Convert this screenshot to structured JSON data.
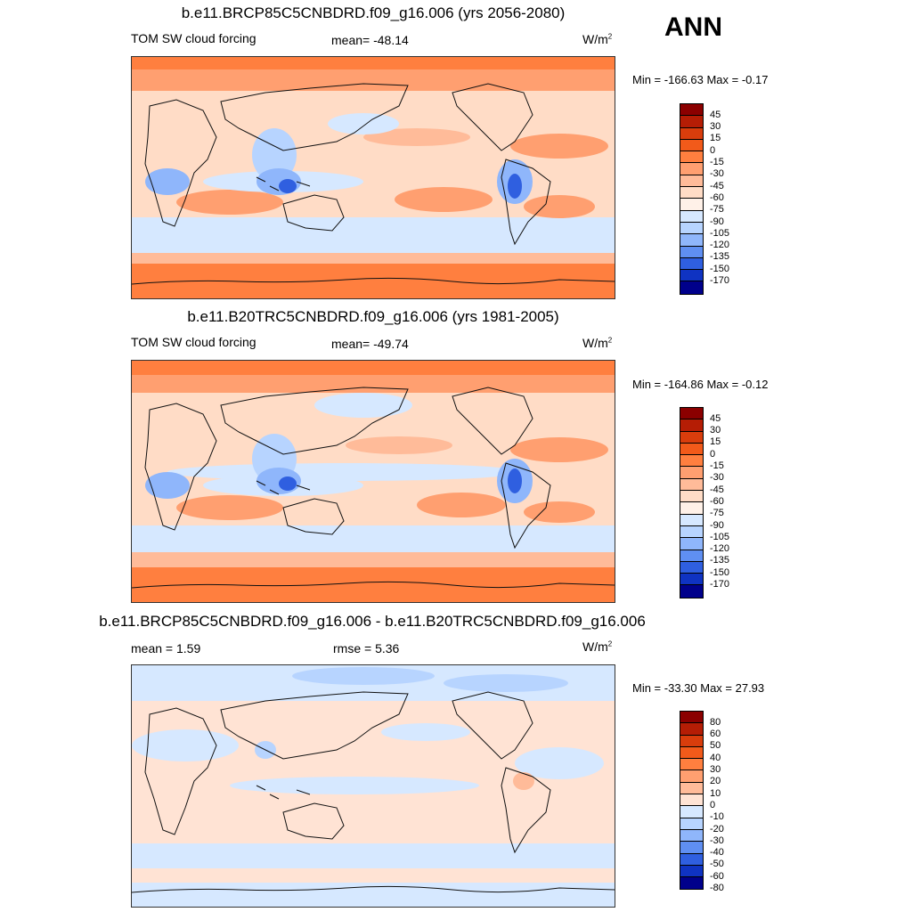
{
  "season": "ANN",
  "units_base": "W/m",
  "units_sup": "2",
  "panels": [
    {
      "title": "b.e11.BRCP85C5CNBDRD.f09_g16.006 (yrs 2056-2080)",
      "left_label": "TOM SW cloud forcing",
      "center_label": "mean= -48.14",
      "minmax": "Min = -166.63 Max =  -0.17",
      "colorbar": [
        "45",
        "30",
        "15",
        "0",
        "-15",
        "-30",
        "-45",
        "-60",
        "-75",
        "-90",
        "-105",
        "-120",
        "-135",
        "-150",
        "-170"
      ],
      "palette": "abs"
    },
    {
      "title": "b.e11.B20TRC5CNBDRD.f09_g16.006 (yrs 1981-2005)",
      "left_label": "TOM SW cloud forcing",
      "center_label": "mean= -49.74",
      "minmax": "Min = -164.86 Max =  -0.12",
      "colorbar": [
        "45",
        "30",
        "15",
        "0",
        "-15",
        "-30",
        "-45",
        "-60",
        "-75",
        "-90",
        "-105",
        "-120",
        "-135",
        "-150",
        "-170"
      ],
      "palette": "abs"
    },
    {
      "title": "b.e11.BRCP85C5CNBDRD.f09_g16.006 - b.e11.B20TRC5CNBDRD.f09_g16.006",
      "left_label": "mean =   1.59",
      "center_label": "rmse =   5.36",
      "minmax": "Min = -33.30 Max =  27.93",
      "colorbar": [
        "80",
        "60",
        "50",
        "40",
        "30",
        "20",
        "10",
        "0",
        "-10",
        "-20",
        "-30",
        "-40",
        "-50",
        "-60",
        "-80"
      ],
      "palette": "diff"
    }
  ],
  "colors": {
    "abs": [
      "#8b0000",
      "#b51d05",
      "#d93d0c",
      "#f25a1a",
      "#ff7f3f",
      "#ff9f70",
      "#ffbb99",
      "#ffdcc6",
      "#fff1e8",
      "#d6e8ff",
      "#b7d4ff",
      "#8fb6fb",
      "#5f8ff2",
      "#2f5fe0",
      "#0f33c2",
      "#00008b"
    ],
    "diff": [
      "#8b0000",
      "#b51d05",
      "#d93d0c",
      "#f25a1a",
      "#ff7f3f",
      "#ff9f70",
      "#ffbb99",
      "#ffe3d4",
      "#d6e8ff",
      "#b7d4ff",
      "#8fb6fb",
      "#5f8ff2",
      "#2f5fe0",
      "#0f33c2",
      "#00008b"
    ]
  }
}
